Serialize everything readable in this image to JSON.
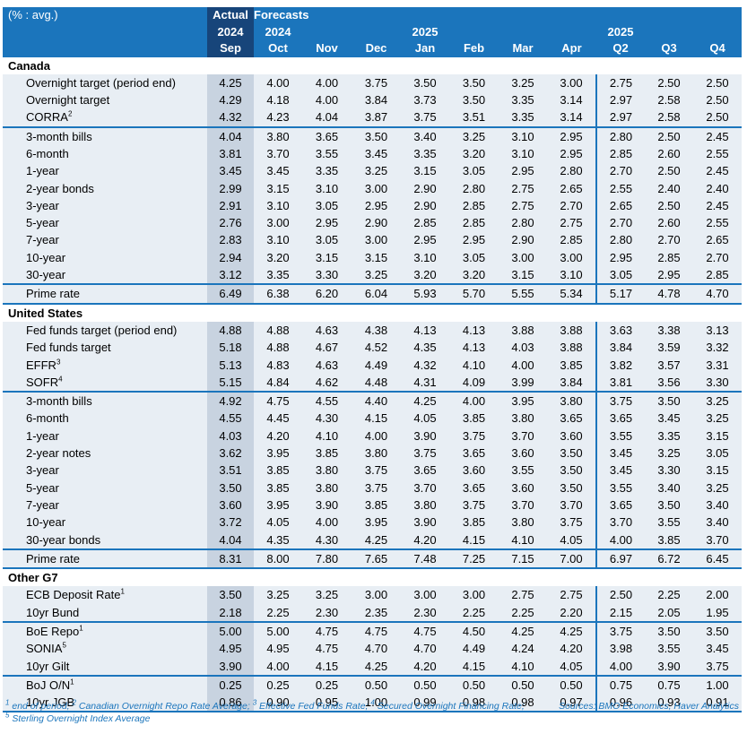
{
  "header": {
    "row1": [
      "(% : avg.)",
      "Actual",
      "Forecasts",
      "",
      "",
      "",
      "",
      "",
      "",
      "",
      "",
      ""
    ],
    "row2": [
      "",
      "2024",
      "2024",
      "",
      "",
      "2025",
      "",
      "",
      "",
      "2025",
      "",
      ""
    ],
    "row3": [
      "",
      "Sep",
      "Oct",
      "Nov",
      "Dec",
      "Jan",
      "Feb",
      "Mar",
      "Apr",
      "Q2",
      "Q3",
      "Q4"
    ]
  },
  "sections": [
    {
      "title": "Canada",
      "rows": [
        {
          "label": "Overnight target (period end)",
          "sup": "",
          "values": [
            "4.25",
            "4.00",
            "4.00",
            "3.75",
            "3.50",
            "3.50",
            "3.25",
            "3.00",
            "2.75",
            "2.50",
            "2.50"
          ]
        },
        {
          "label": "Overnight target",
          "sup": "",
          "values": [
            "4.29",
            "4.18",
            "4.00",
            "3.84",
            "3.73",
            "3.50",
            "3.35",
            "3.14",
            "2.97",
            "2.58",
            "2.50"
          ]
        },
        {
          "label": "CORRA",
          "sup": "2",
          "values": [
            "4.32",
            "4.23",
            "4.04",
            "3.87",
            "3.75",
            "3.51",
            "3.35",
            "3.14",
            "2.97",
            "2.58",
            "2.50"
          ]
        },
        {
          "label": "3-month bills",
          "sup": "",
          "values": [
            "4.04",
            "3.80",
            "3.65",
            "3.50",
            "3.40",
            "3.25",
            "3.10",
            "2.95",
            "2.80",
            "2.50",
            "2.45"
          ]
        },
        {
          "label": "6-month",
          "sup": "",
          "values": [
            "3.81",
            "3.70",
            "3.55",
            "3.45",
            "3.35",
            "3.20",
            "3.10",
            "2.95",
            "2.85",
            "2.60",
            "2.55"
          ]
        },
        {
          "label": "1-year",
          "sup": "",
          "values": [
            "3.45",
            "3.45",
            "3.35",
            "3.25",
            "3.15",
            "3.05",
            "2.95",
            "2.80",
            "2.70",
            "2.50",
            "2.45"
          ]
        },
        {
          "label": "2-year bonds",
          "sup": "",
          "values": [
            "2.99",
            "3.15",
            "3.10",
            "3.00",
            "2.90",
            "2.80",
            "2.75",
            "2.65",
            "2.55",
            "2.40",
            "2.40"
          ]
        },
        {
          "label": "3-year",
          "sup": "",
          "values": [
            "2.91",
            "3.10",
            "3.05",
            "2.95",
            "2.90",
            "2.85",
            "2.75",
            "2.70",
            "2.65",
            "2.50",
            "2.45"
          ]
        },
        {
          "label": "5-year",
          "sup": "",
          "values": [
            "2.76",
            "3.00",
            "2.95",
            "2.90",
            "2.85",
            "2.85",
            "2.80",
            "2.75",
            "2.70",
            "2.60",
            "2.55"
          ]
        },
        {
          "label": "7-year",
          "sup": "",
          "values": [
            "2.83",
            "3.10",
            "3.05",
            "3.00",
            "2.95",
            "2.95",
            "2.90",
            "2.85",
            "2.80",
            "2.70",
            "2.65"
          ]
        },
        {
          "label": "10-year",
          "sup": "",
          "values": [
            "2.94",
            "3.20",
            "3.15",
            "3.15",
            "3.10",
            "3.05",
            "3.00",
            "3.00",
            "2.95",
            "2.85",
            "2.70"
          ]
        },
        {
          "label": "30-year",
          "sup": "",
          "values": [
            "3.12",
            "3.35",
            "3.30",
            "3.25",
            "3.20",
            "3.20",
            "3.15",
            "3.10",
            "3.05",
            "2.95",
            "2.85"
          ]
        },
        {
          "label": "Prime rate",
          "sup": "",
          "values": [
            "6.49",
            "6.38",
            "6.20",
            "6.04",
            "5.93",
            "5.70",
            "5.55",
            "5.34",
            "5.17",
            "4.78",
            "4.70"
          ]
        }
      ]
    },
    {
      "title": "United States",
      "rows": [
        {
          "label": "Fed funds target (period end)",
          "sup": "",
          "values": [
            "4.88",
            "4.88",
            "4.63",
            "4.38",
            "4.13",
            "4.13",
            "3.88",
            "3.88",
            "3.63",
            "3.38",
            "3.13"
          ]
        },
        {
          "label": "Fed funds target",
          "sup": "",
          "values": [
            "5.18",
            "4.88",
            "4.67",
            "4.52",
            "4.35",
            "4.13",
            "4.03",
            "3.88",
            "3.84",
            "3.59",
            "3.32"
          ]
        },
        {
          "label": "EFFR",
          "sup": "3",
          "values": [
            "5.13",
            "4.83",
            "4.63",
            "4.49",
            "4.32",
            "4.10",
            "4.00",
            "3.85",
            "3.82",
            "3.57",
            "3.31"
          ]
        },
        {
          "label": "SOFR",
          "sup": "4",
          "values": [
            "5.15",
            "4.84",
            "4.62",
            "4.48",
            "4.31",
            "4.09",
            "3.99",
            "3.84",
            "3.81",
            "3.56",
            "3.30"
          ]
        },
        {
          "label": "3-month bills",
          "sup": "",
          "values": [
            "4.92",
            "4.75",
            "4.55",
            "4.40",
            "4.25",
            "4.00",
            "3.95",
            "3.80",
            "3.75",
            "3.50",
            "3.25"
          ]
        },
        {
          "label": "6-month",
          "sup": "",
          "values": [
            "4.55",
            "4.45",
            "4.30",
            "4.15",
            "4.05",
            "3.85",
            "3.80",
            "3.65",
            "3.65",
            "3.45",
            "3.25"
          ]
        },
        {
          "label": "1-year",
          "sup": "",
          "values": [
            "4.03",
            "4.20",
            "4.10",
            "4.00",
            "3.90",
            "3.75",
            "3.70",
            "3.60",
            "3.55",
            "3.35",
            "3.15"
          ]
        },
        {
          "label": "2-year notes",
          "sup": "",
          "values": [
            "3.62",
            "3.95",
            "3.85",
            "3.80",
            "3.75",
            "3.65",
            "3.60",
            "3.50",
            "3.45",
            "3.25",
            "3.05"
          ]
        },
        {
          "label": "3-year",
          "sup": "",
          "values": [
            "3.51",
            "3.85",
            "3.80",
            "3.75",
            "3.65",
            "3.60",
            "3.55",
            "3.50",
            "3.45",
            "3.30",
            "3.15"
          ]
        },
        {
          "label": "5-year",
          "sup": "",
          "values": [
            "3.50",
            "3.85",
            "3.80",
            "3.75",
            "3.70",
            "3.65",
            "3.60",
            "3.50",
            "3.55",
            "3.40",
            "3.25"
          ]
        },
        {
          "label": "7-year",
          "sup": "",
          "values": [
            "3.60",
            "3.95",
            "3.90",
            "3.85",
            "3.80",
            "3.75",
            "3.70",
            "3.70",
            "3.65",
            "3.50",
            "3.40"
          ]
        },
        {
          "label": "10-year",
          "sup": "",
          "values": [
            "3.72",
            "4.05",
            "4.00",
            "3.95",
            "3.90",
            "3.85",
            "3.80",
            "3.75",
            "3.70",
            "3.55",
            "3.40"
          ]
        },
        {
          "label": "30-year bonds",
          "sup": "",
          "values": [
            "4.04",
            "4.35",
            "4.30",
            "4.25",
            "4.20",
            "4.15",
            "4.10",
            "4.05",
            "4.00",
            "3.85",
            "3.70"
          ]
        },
        {
          "label": "Prime rate",
          "sup": "",
          "values": [
            "8.31",
            "8.00",
            "7.80",
            "7.65",
            "7.48",
            "7.25",
            "7.15",
            "7.00",
            "6.97",
            "6.72",
            "6.45"
          ]
        }
      ]
    },
    {
      "title": "Other G7",
      "rows": [
        {
          "label": "ECB Deposit Rate",
          "sup": "1",
          "values": [
            "3.50",
            "3.25",
            "3.25",
            "3.00",
            "3.00",
            "3.00",
            "2.75",
            "2.75",
            "2.50",
            "2.25",
            "2.00"
          ]
        },
        {
          "label": "10yr Bund",
          "sup": "",
          "values": [
            "2.18",
            "2.25",
            "2.30",
            "2.35",
            "2.30",
            "2.25",
            "2.25",
            "2.20",
            "2.15",
            "2.05",
            "1.95"
          ]
        },
        {
          "label": "BoE Repo",
          "sup": "1",
          "values": [
            "5.00",
            "5.00",
            "4.75",
            "4.75",
            "4.75",
            "4.50",
            "4.25",
            "4.25",
            "3.75",
            "3.50",
            "3.50"
          ]
        },
        {
          "label": "SONIA",
          "sup": "5",
          "values": [
            "4.95",
            "4.95",
            "4.75",
            "4.70",
            "4.70",
            "4.49",
            "4.24",
            "4.20",
            "3.98",
            "3.55",
            "3.45"
          ]
        },
        {
          "label": "10yr Gilt",
          "sup": "",
          "values": [
            "3.90",
            "4.00",
            "4.15",
            "4.25",
            "4.20",
            "4.15",
            "4.10",
            "4.05",
            "4.00",
            "3.90",
            "3.75"
          ]
        },
        {
          "label": "BoJ O/N",
          "sup": "1",
          "values": [
            "0.25",
            "0.25",
            "0.25",
            "0.50",
            "0.50",
            "0.50",
            "0.50",
            "0.50",
            "0.75",
            "0.75",
            "1.00"
          ]
        },
        {
          "label": "10yr JGB",
          "sup": "",
          "values": [
            "0.86",
            "0.90",
            "0.95",
            "1.00",
            "0.99",
            "0.98",
            "0.98",
            "0.97",
            "0.96",
            "0.93",
            "0.91"
          ]
        }
      ]
    }
  ],
  "footnotes": {
    "fn1_num": "1",
    "fn1_text": " end of period; ",
    "fn2_num": "2",
    "fn2_text": " Canadian Overnight Repo Rate Average; ",
    "fn3_num": "3",
    "fn3_text": " Effective Fed Funds Rate; ",
    "fn4_num": "4",
    "fn4_text": " Secured Overnight Financing Rate;",
    "fn5_num": "5",
    "fn5_text": " Sterling Overnight Index Average",
    "source": "Sources: BMO Economics, Haver Analytics"
  },
  "colors": {
    "accent": "#1b75bc",
    "actual_header": "#17457a",
    "row_band": "#e8eef4",
    "actual_band": "#c8d3e0"
  }
}
